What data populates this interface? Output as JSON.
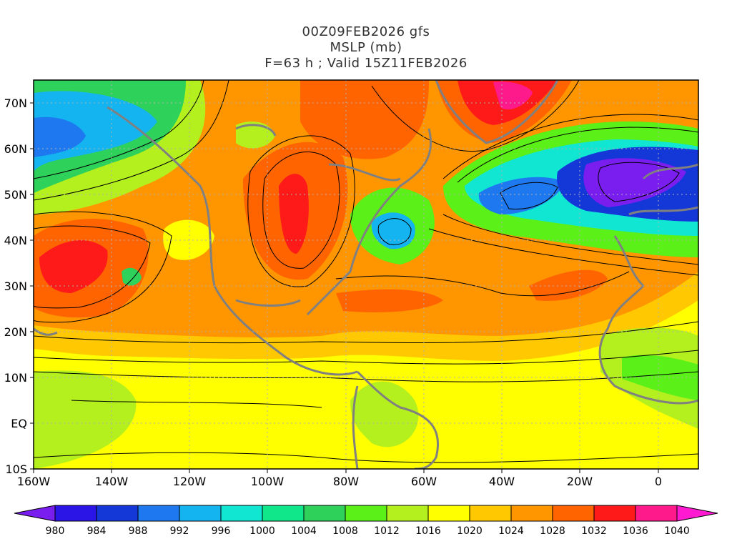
{
  "title": {
    "line1": "00Z09FEB2026 gfs",
    "line2": "MSLP (mb)",
    "line3": "F=63 h ; Valid 15Z11FEB2026"
  },
  "axes": {
    "lat_labels": [
      "70N",
      "60N",
      "50N",
      "40N",
      "30N",
      "20N",
      "10N",
      "EQ",
      "10S"
    ],
    "lon_labels": [
      "160W",
      "140W",
      "120W",
      "100W",
      "80W",
      "60W",
      "40W",
      "20W",
      "0"
    ]
  },
  "colorbar": {
    "labels": [
      "980",
      "984",
      "988",
      "992",
      "996",
      "1000",
      "1004",
      "1008",
      "1012",
      "1016",
      "1020",
      "1024",
      "1028",
      "1032",
      "1036",
      "1040"
    ],
    "colors": [
      "#7a1ef0",
      "#2a15e6",
      "#1438d8",
      "#1e78f0",
      "#14b4f0",
      "#10e6d2",
      "#10e68a",
      "#2ed25a",
      "#5af018",
      "#b4f01e",
      "#ffff00",
      "#ffc800",
      "#ff9600",
      "#ff6400",
      "#ff1a1a",
      "#ff1a8c",
      "#ff1ad2"
    ]
  },
  "colors": {
    "contour": "#000000",
    "coast": "#808080",
    "grid": "#b0b0b0"
  }
}
